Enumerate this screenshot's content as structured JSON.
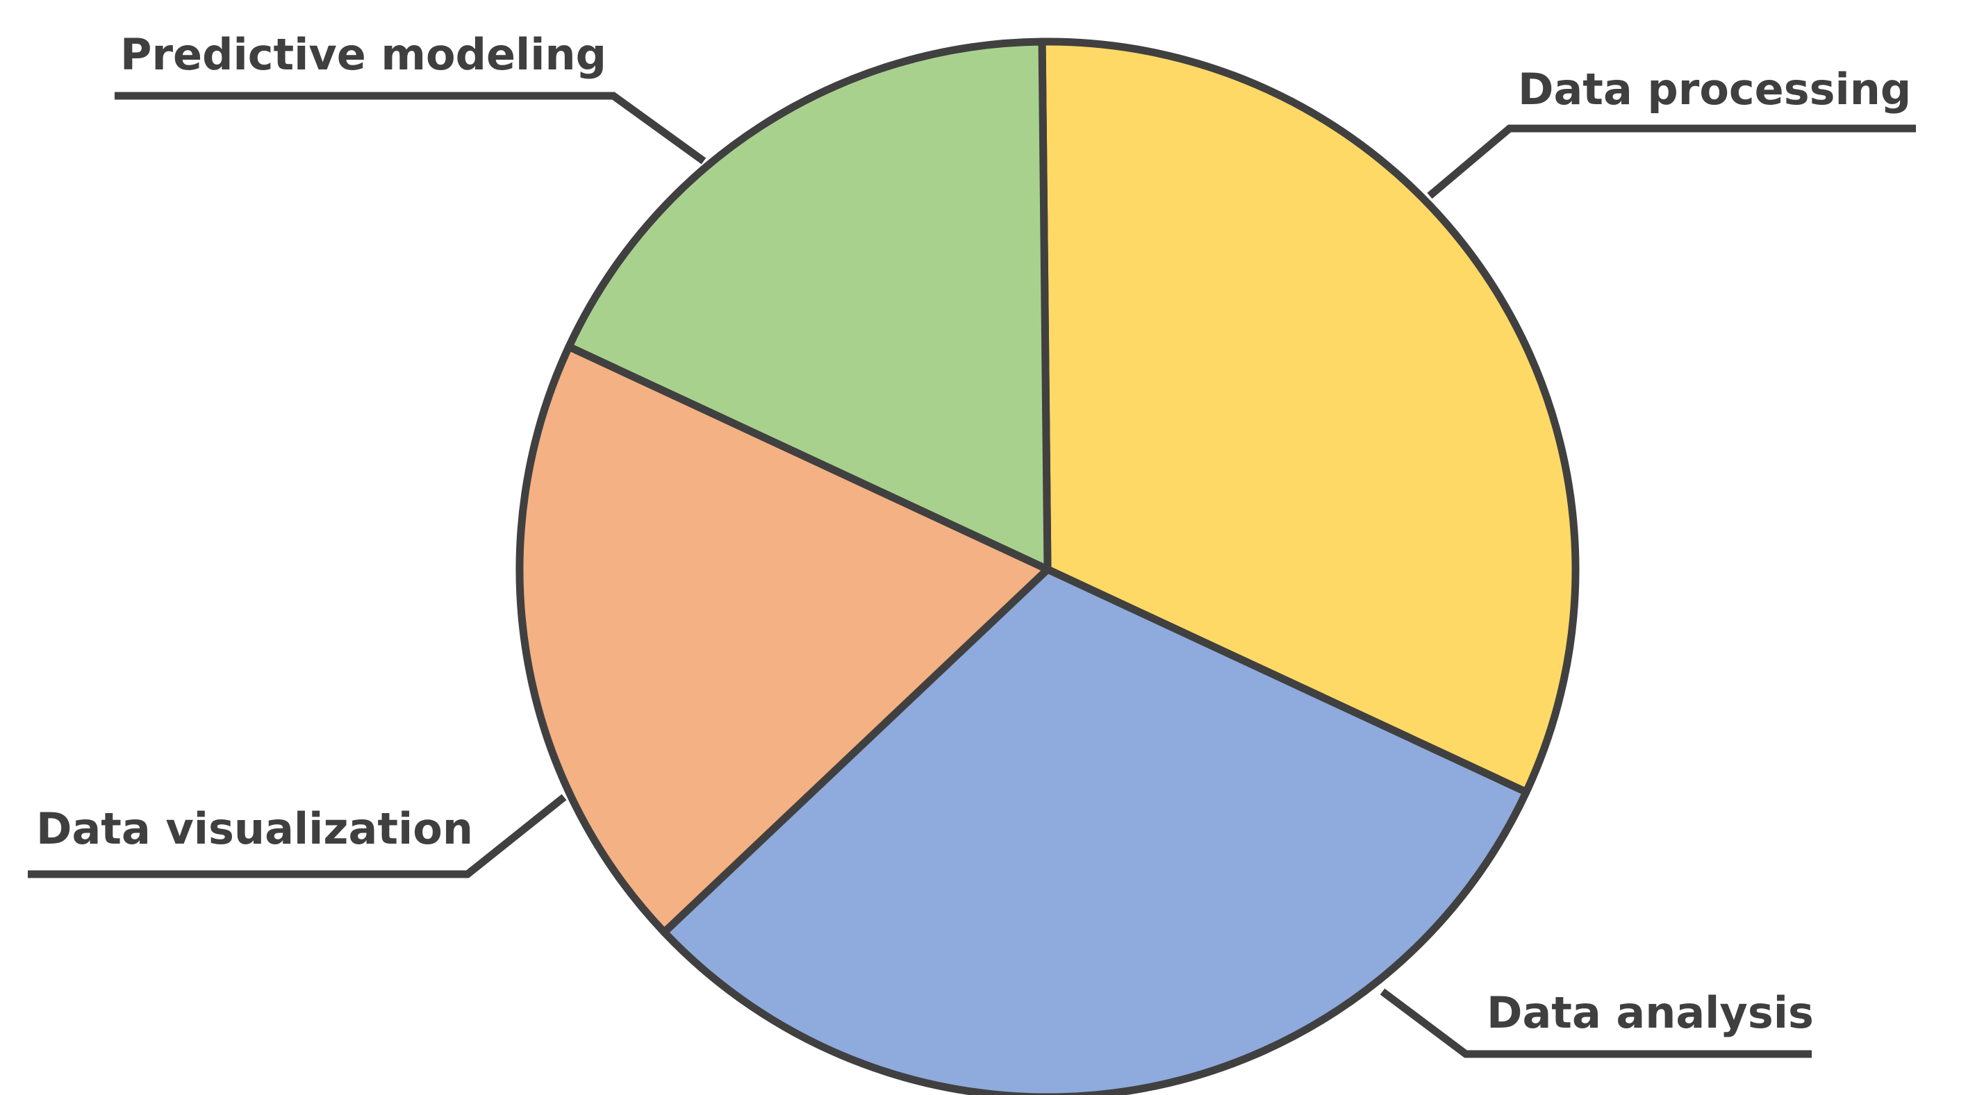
{
  "chart_data": {
    "type": "pie",
    "title": "",
    "labels": [
      "Data processing",
      "Data analysis",
      "Data visualization",
      "Predictive modeling"
    ],
    "values": [
      0.321,
      0.31,
      0.19,
      0.179
    ],
    "colors": [
      "#FFD966",
      "#8FAADC",
      "#F4B183",
      "#A9D18E"
    ],
    "start_angle_deg": -0.6,
    "direction": "clockwise",
    "legend": "none",
    "label_style": "outside with leader lines"
  }
}
